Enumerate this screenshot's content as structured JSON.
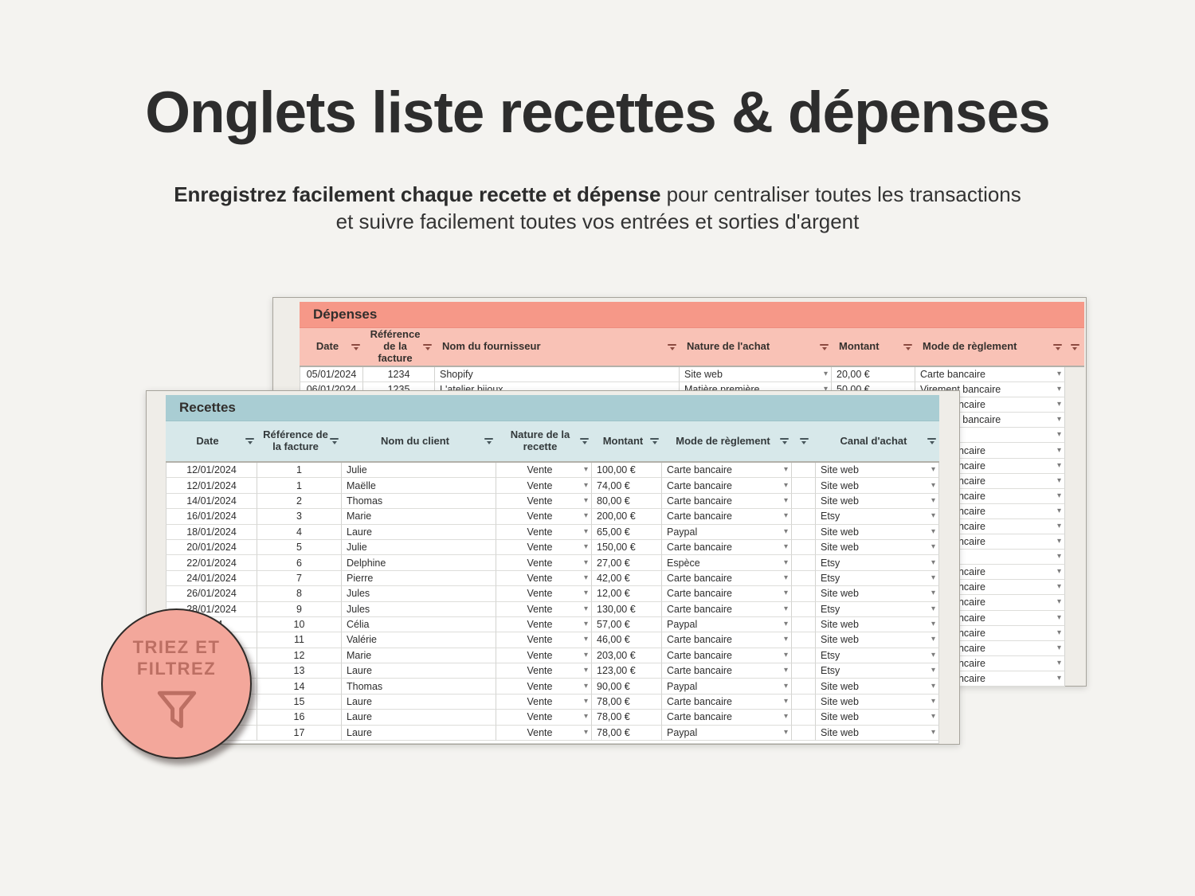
{
  "page": {
    "title": "Onglets liste recettes & dépenses",
    "subtitle_bold": "Enregistrez facilement chaque recette et dépense",
    "subtitle_rest_line1": " pour centraliser toutes les transactions",
    "subtitle_rest_line2": "et suivre facilement toutes vos entrées et sorties d'argent"
  },
  "badge": {
    "line1": "TRIEZ ET",
    "line2": "FILTREZ",
    "icon": "funnel-icon"
  },
  "colors": {
    "page_bg": "#f4f3f0",
    "depenses_title_bar": "#f69888",
    "depenses_header": "#f9c2b6",
    "recettes_title_bar": "#a9cdd3",
    "recettes_header": "#d7e8ea",
    "badge_fill": "#f3a79b",
    "badge_accent": "#bc6f63"
  },
  "depenses": {
    "title": "Dépenses",
    "headers": [
      "Date",
      "Référence de la facture",
      "Nom du fournisseur",
      "Nature de l'achat",
      "Montant",
      "Mode de règlement"
    ],
    "rows": [
      {
        "date": "05/01/2024",
        "ref": "1234",
        "fournisseur": "Shopify",
        "nature": "Site web",
        "montant": "20,00 €",
        "mode": "Carte bancaire"
      },
      {
        "date": "06/01/2024",
        "ref": "1235",
        "fournisseur": "L'atelier bijoux",
        "nature": "Matière première",
        "montant": "50,00 €",
        "mode": "Virement bancaire"
      },
      {
        "date": "",
        "ref": "",
        "fournisseur": "",
        "nature": "",
        "montant": "",
        "mode": "Carte bancaire"
      },
      {
        "date": "",
        "ref": "",
        "fournisseur": "",
        "nature": "",
        "montant": "",
        "mode": "Virement bancaire"
      },
      {
        "date": "",
        "ref": "",
        "fournisseur": "",
        "nature": "",
        "montant": "",
        "mode": ""
      },
      {
        "date": "",
        "ref": "",
        "fournisseur": "",
        "nature": "",
        "montant": "",
        "mode": "Carte bancaire"
      },
      {
        "date": "",
        "ref": "",
        "fournisseur": "",
        "nature": "",
        "montant": "",
        "mode": "Carte bancaire"
      },
      {
        "date": "",
        "ref": "",
        "fournisseur": "",
        "nature": "",
        "montant": "",
        "mode": "Carte bancaire"
      },
      {
        "date": "",
        "ref": "",
        "fournisseur": "",
        "nature": "",
        "montant": "",
        "mode": "Carte bancaire"
      },
      {
        "date": "",
        "ref": "",
        "fournisseur": "",
        "nature": "",
        "montant": "",
        "mode": "Carte bancaire"
      },
      {
        "date": "",
        "ref": "",
        "fournisseur": "",
        "nature": "",
        "montant": "",
        "mode": "Carte bancaire"
      },
      {
        "date": "",
        "ref": "",
        "fournisseur": "",
        "nature": "",
        "montant": "",
        "mode": "Carte bancaire"
      },
      {
        "date": "",
        "ref": "",
        "fournisseur": "",
        "nature": "",
        "montant": "",
        "mode": ""
      },
      {
        "date": "",
        "ref": "",
        "fournisseur": "",
        "nature": "",
        "montant": "",
        "mode": "Carte bancaire"
      },
      {
        "date": "",
        "ref": "",
        "fournisseur": "",
        "nature": "",
        "montant": "",
        "mode": "Carte bancaire"
      },
      {
        "date": "",
        "ref": "",
        "fournisseur": "",
        "nature": "",
        "montant": "",
        "mode": "Carte bancaire"
      },
      {
        "date": "",
        "ref": "",
        "fournisseur": "",
        "nature": "",
        "montant": "",
        "mode": "Carte bancaire"
      },
      {
        "date": "",
        "ref": "",
        "fournisseur": "",
        "nature": "",
        "montant": "",
        "mode": "Carte bancaire"
      },
      {
        "date": "",
        "ref": "",
        "fournisseur": "",
        "nature": "",
        "montant": "",
        "mode": "Carte bancaire"
      },
      {
        "date": "",
        "ref": "",
        "fournisseur": "",
        "nature": "",
        "montant": "",
        "mode": "Carte bancaire"
      },
      {
        "date": "",
        "ref": "",
        "fournisseur": "",
        "nature": "",
        "montant": "",
        "mode": "Carte bancaire"
      }
    ]
  },
  "recettes": {
    "title": "Recettes",
    "headers": [
      "Date",
      "Référence de la facture",
      "Nom du client",
      "Nature de la recette",
      "Montant",
      "Mode de règlement",
      "",
      "Canal d'achat"
    ],
    "rows": [
      {
        "date": "12/01/2024",
        "ref": "1",
        "client": "Julie",
        "nature": "Vente",
        "montant": "100,00 €",
        "mode": "Carte bancaire",
        "blank": "",
        "canal": "Site web"
      },
      {
        "date": "12/01/2024",
        "ref": "1",
        "client": "Maëlle",
        "nature": "Vente",
        "montant": "74,00 €",
        "mode": "Carte bancaire",
        "blank": "",
        "canal": "Site web"
      },
      {
        "date": "14/01/2024",
        "ref": "2",
        "client": "Thomas",
        "nature": "Vente",
        "montant": "80,00 €",
        "mode": "Carte bancaire",
        "blank": "",
        "canal": "Site web"
      },
      {
        "date": "16/01/2024",
        "ref": "3",
        "client": "Marie",
        "nature": "Vente",
        "montant": "200,00 €",
        "mode": "Carte bancaire",
        "blank": "",
        "canal": "Etsy"
      },
      {
        "date": "18/01/2024",
        "ref": "4",
        "client": "Laure",
        "nature": "Vente",
        "montant": "65,00 €",
        "mode": "Paypal",
        "blank": "",
        "canal": "Site web"
      },
      {
        "date": "20/01/2024",
        "ref": "5",
        "client": "Julie",
        "nature": "Vente",
        "montant": "150,00 €",
        "mode": "Carte bancaire",
        "blank": "",
        "canal": "Site web"
      },
      {
        "date": "22/01/2024",
        "ref": "6",
        "client": "Delphine",
        "nature": "Vente",
        "montant": "27,00 €",
        "mode": "Espèce",
        "blank": "",
        "canal": "Etsy"
      },
      {
        "date": "24/01/2024",
        "ref": "7",
        "client": "Pierre",
        "nature": "Vente",
        "montant": "42,00 €",
        "mode": "Carte bancaire",
        "blank": "",
        "canal": "Etsy"
      },
      {
        "date": "26/01/2024",
        "ref": "8",
        "client": "Jules",
        "nature": "Vente",
        "montant": "12,00 €",
        "mode": "Carte bancaire",
        "blank": "",
        "canal": "Site web"
      },
      {
        "date": "28/01/2024",
        "ref": "9",
        "client": "Jules",
        "nature": "Vente",
        "montant": "130,00 €",
        "mode": "Carte bancaire",
        "blank": "",
        "canal": "Etsy"
      },
      {
        "date": "2024",
        "ref": "10",
        "client": "Célia",
        "nature": "Vente",
        "montant": "57,00 €",
        "mode": "Paypal",
        "blank": "",
        "canal": "Site web"
      },
      {
        "date": "4",
        "ref": "11",
        "client": "Valérie",
        "nature": "Vente",
        "montant": "46,00 €",
        "mode": "Carte bancaire",
        "blank": "",
        "canal": "Site web"
      },
      {
        "date": "",
        "ref": "12",
        "client": "Marie",
        "nature": "Vente",
        "montant": "203,00 €",
        "mode": "Carte bancaire",
        "blank": "",
        "canal": "Etsy"
      },
      {
        "date": "",
        "ref": "13",
        "client": "Laure",
        "nature": "Vente",
        "montant": "123,00 €",
        "mode": "Carte bancaire",
        "blank": "",
        "canal": "Etsy"
      },
      {
        "date": "",
        "ref": "14",
        "client": "Thomas",
        "nature": "Vente",
        "montant": "90,00 €",
        "mode": "Paypal",
        "blank": "",
        "canal": "Site web"
      },
      {
        "date": "",
        "ref": "15",
        "client": "Laure",
        "nature": "Vente",
        "montant": "78,00 €",
        "mode": "Carte bancaire",
        "blank": "",
        "canal": "Site web"
      },
      {
        "date": "",
        "ref": "16",
        "client": "Laure",
        "nature": "Vente",
        "montant": "78,00 €",
        "mode": "Carte bancaire",
        "blank": "",
        "canal": "Site web"
      },
      {
        "date": "4",
        "ref": "17",
        "client": "Laure",
        "nature": "Vente",
        "montant": "78,00 €",
        "mode": "Paypal",
        "blank": "",
        "canal": "Site web"
      }
    ]
  }
}
